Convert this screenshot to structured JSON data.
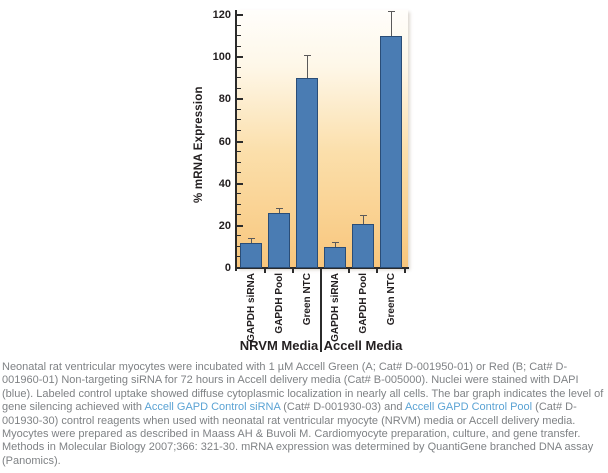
{
  "chart_data": {
    "type": "bar",
    "title": "",
    "ylabel": "% mRNA Expression",
    "xlabel": "",
    "ylim": [
      0,
      120
    ],
    "ytick_major_step": 20,
    "ytick_minor_step": 5,
    "grid": false,
    "legend": null,
    "groups": [
      {
        "label": "NRVM Media",
        "categories": [
          "GAPDH siRNA",
          "GAPDH Pool",
          "Green NTC"
        ],
        "values": [
          12,
          26,
          90
        ],
        "errors_plus": [
          2.5,
          2.5,
          11
        ]
      },
      {
        "label": "Accell Media",
        "categories": [
          "GAPDH siRNA",
          "GAPDH Pool",
          "Green NTC"
        ],
        "values": [
          10,
          21,
          110
        ],
        "errors_plus": [
          2.5,
          4.5,
          12
        ]
      }
    ],
    "colors": {
      "bar_fill": "#4a7cb3",
      "bar_edge": "#2a4d77",
      "error_bar": "#5a5a5a",
      "axis": "#2b2b2b",
      "tick_label": "#231f20",
      "plot_bg_bottom": "#f8c67c",
      "plot_bg_top": "#fffefb"
    }
  },
  "caption": {
    "text_color": "#7f8285",
    "link_color": "#5ba3d4",
    "segments": [
      {
        "type": "text",
        "text": "Neonatal rat ventricular myocytes were incubated with 1 µM Accell Green (A; Cat# D-001950-01) or Red (B; Cat# D-001960-01) Non-targeting siRNA for 72 hours in Accell delivery media (Cat# B-005000). Nuclei were stained with DAPI (blue). Labeled control uptake showed diffuse cytoplasmic localization in nearly all cells. The bar graph indicates the level of gene silencing achieved with "
      },
      {
        "type": "link",
        "text": "Accell GAPD Control siRNA"
      },
      {
        "type": "text",
        "text": " (Cat# D-001930-03) and "
      },
      {
        "type": "link",
        "text": "Accell GAPD Control Pool"
      },
      {
        "type": "text",
        "text": " (Cat# D-001930-30) control reagents when used with neonatal rat ventricular myocyte (NRVM) media or Accell delivery media. Myocytes were prepared as described in Maass AH & Buvoli M. Cardiomyocyte preparation, culture, and gene transfer. Methods in Molecular Biology 2007;366: 321-30. mRNA expression was determined by QuantiGene branched DNA assay (Panomics)."
      }
    ]
  }
}
